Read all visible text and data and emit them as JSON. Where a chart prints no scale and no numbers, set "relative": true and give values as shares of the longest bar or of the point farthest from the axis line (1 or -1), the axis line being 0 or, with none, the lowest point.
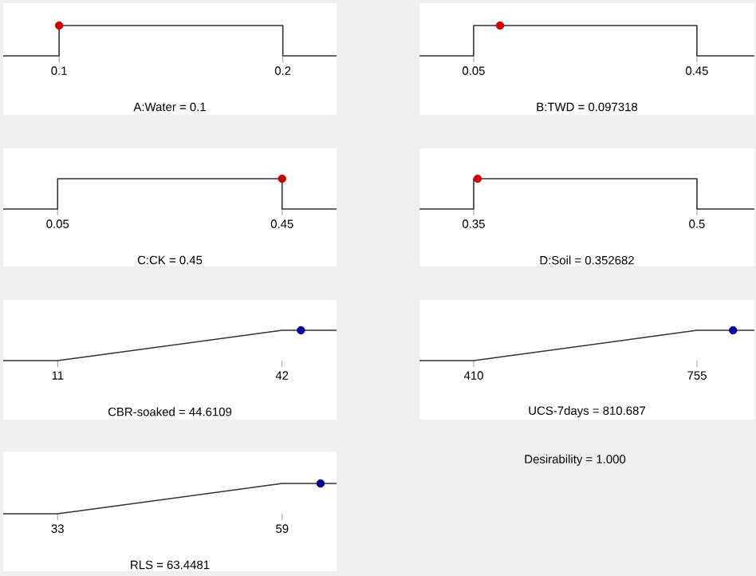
{
  "chart_data": [
    {
      "type": "line",
      "xlabel": "A:Water = 0.1",
      "relative": true,
      "xlim": [
        0.075,
        0.224
      ],
      "xticks": [
        0.1,
        0.2
      ],
      "series": [
        {
          "x": [
            0.075,
            0.1,
            0.1,
            0.2,
            0.2,
            0.224
          ],
          "values": [
            0,
            0,
            1,
            1,
            0,
            0
          ],
          "color": "#333333",
          "marker": "none"
        },
        {
          "type": "scatter",
          "x": [
            0.1
          ],
          "values": [
            1
          ],
          "color": "#cc0000",
          "marker": "circle"
        }
      ]
    },
    {
      "type": "line",
      "xlabel": "B:TWD = 0.097318",
      "relative": true,
      "xlim": [
        -0.047,
        0.553
      ],
      "xticks": [
        0.05,
        0.45
      ],
      "series": [
        {
          "x": [
            -0.047,
            0.05,
            0.05,
            0.45,
            0.45,
            0.553
          ],
          "values": [
            0,
            0,
            1,
            1,
            0,
            0
          ],
          "color": "#333333",
          "marker": "none"
        },
        {
          "type": "scatter",
          "x": [
            0.097318
          ],
          "values": [
            1
          ],
          "color": "#cc0000",
          "marker": "circle"
        }
      ]
    },
    {
      "type": "line",
      "xlabel": "C:CK = 0.45",
      "relative": true,
      "xlim": [
        -0.047,
        0.547
      ],
      "xticks": [
        0.05,
        0.45
      ],
      "series": [
        {
          "x": [
            -0.047,
            0.05,
            0.05,
            0.45,
            0.45,
            0.547
          ],
          "values": [
            0,
            0,
            1,
            1,
            0,
            0
          ],
          "color": "#333333",
          "marker": "none"
        },
        {
          "type": "scatter",
          "x": [
            0.45
          ],
          "values": [
            1
          ],
          "color": "#cc0000",
          "marker": "circle"
        }
      ]
    },
    {
      "type": "line",
      "xlabel": "D:Soil = 0.352682",
      "relative": true,
      "xlim": [
        0.3136,
        0.5386
      ],
      "xticks": [
        0.35,
        0.5
      ],
      "series": [
        {
          "x": [
            0.3136,
            0.35,
            0.35,
            0.5,
            0.5,
            0.5386
          ],
          "values": [
            0,
            0,
            1,
            1,
            0,
            0
          ],
          "color": "#333333",
          "marker": "none"
        },
        {
          "type": "scatter",
          "x": [
            0.352682
          ],
          "values": [
            1
          ],
          "color": "#cc0000",
          "marker": "circle"
        }
      ]
    },
    {
      "type": "line",
      "xlabel": "CBR-soaked = 44.6109",
      "relative": true,
      "xlim": [
        3.47,
        49.53
      ],
      "xticks": [
        11,
        42
      ],
      "series": [
        {
          "x": [
            3.47,
            11,
            42,
            49.53
          ],
          "values": [
            0,
            0,
            1,
            1
          ],
          "color": "#333333",
          "marker": "none"
        },
        {
          "type": "scatter",
          "x": [
            44.6109
          ],
          "values": [
            1
          ],
          "color": "#000099",
          "marker": "circle"
        }
      ]
    },
    {
      "type": "line",
      "xlabel": "UCS-7days = 810.687",
      "relative": true,
      "xlim": [
        326.2,
        843.7
      ],
      "xticks": [
        410,
        755
      ],
      "series": [
        {
          "x": [
            326.2,
            410,
            755,
            843.7
          ],
          "values": [
            0,
            0,
            1,
            1
          ],
          "color": "#333333",
          "marker": "none"
        },
        {
          "type": "scatter",
          "x": [
            810.687
          ],
          "values": [
            1
          ],
          "color": "#000099",
          "marker": "circle"
        }
      ]
    },
    {
      "type": "line",
      "xlabel": "RLS = 63.4481",
      "relative": true,
      "xlim": [
        26.7,
        65.3
      ],
      "xticks": [
        33,
        59
      ],
      "annotations": [
        "Desirability = 1.000"
      ],
      "series": [
        {
          "x": [
            26.7,
            33,
            59,
            65.3
          ],
          "values": [
            0,
            0,
            1,
            1
          ],
          "color": "#333333",
          "marker": "none"
        },
        {
          "type": "scatter",
          "x": [
            63.4481
          ],
          "values": [
            1
          ],
          "color": "#000099",
          "marker": "circle"
        }
      ]
    }
  ]
}
